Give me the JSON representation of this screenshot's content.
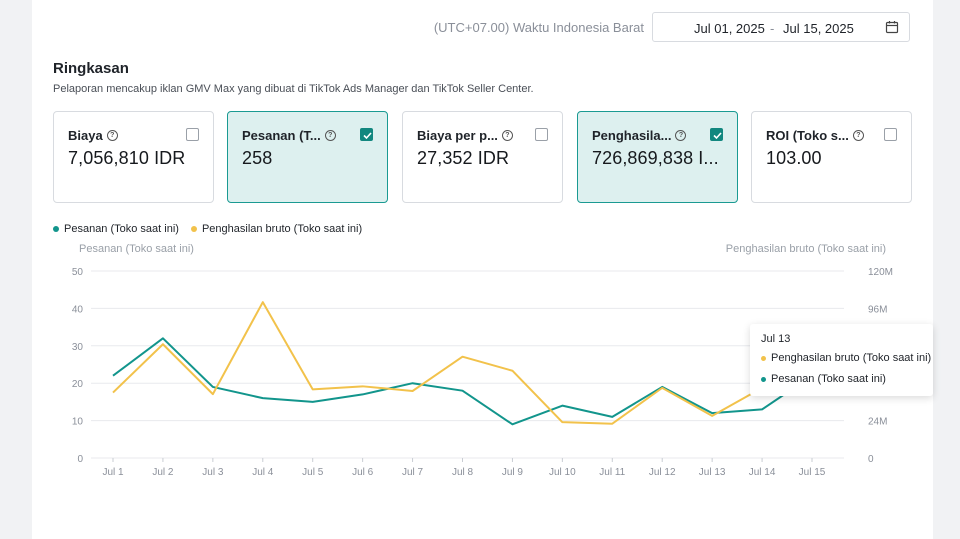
{
  "header": {
    "timezone": "(UTC+07.00) Waktu Indonesia Barat",
    "date_start": "Jul 01, 2025",
    "date_sep": "-",
    "date_end": "Jul 15, 2025",
    "calendar_icon": "calendar-icon"
  },
  "summary": {
    "title": "Ringkasan",
    "subtitle": "Pelaporan mencakup iklan GMV Max yang dibuat di TikTok Ads Manager dan TikTok Seller Center."
  },
  "cards": [
    {
      "label": "Biaya",
      "value": "7,056,810 IDR",
      "checked": false
    },
    {
      "label": "Pesanan (T...",
      "value": "258",
      "checked": true
    },
    {
      "label": "Biaya per p...",
      "value": "27,352 IDR",
      "checked": false
    },
    {
      "label": "Penghasila...",
      "value": "726,869,838 I...",
      "checked": true
    },
    {
      "label": "ROI (Toko s...",
      "value": "103.00",
      "checked": false
    }
  ],
  "help_glyph": "?",
  "legend": [
    {
      "name": "Pesanan (Toko saat ini)",
      "color": "#12958c"
    },
    {
      "name": "Penghasilan bruto (Toko saat ini)",
      "color": "#f2c24b"
    }
  ],
  "tooltip": {
    "title": "Jul 13",
    "rows": [
      {
        "label": "Penghasilan bruto (Toko saat ini)",
        "color": "#f2c24b"
      },
      {
        "label": "Pesanan (Toko saat ini)",
        "color": "#12958c"
      }
    ]
  },
  "chart_data": {
    "type": "line",
    "ylabel_left": "Pesanan (Toko saat ini)",
    "ylabel_right": "Penghasilan bruto (Toko saat ini)",
    "categories": [
      "Jul 1",
      "Jul 2",
      "Jul 3",
      "Jul 4",
      "Jul 5",
      "Jul 6",
      "Jul 7",
      "Jul 8",
      "Jul 9",
      "Jul 10",
      "Jul 11",
      "Jul 12",
      "Jul 13",
      "Jul 14",
      "Jul 15"
    ],
    "y_left_ticks": [
      "0",
      "10",
      "20",
      "30",
      "40",
      "50"
    ],
    "y_left_lim": [
      0,
      50
    ],
    "y_right_ticks": [
      "0",
      "24M",
      "48M",
      "72M",
      "96M",
      "120M"
    ],
    "y_right_lim": [
      0,
      120
    ],
    "y_right_unit": "M",
    "series": [
      {
        "name": "Pesanan (Toko saat ini)",
        "axis": "left",
        "color": "#12958c",
        "values": [
          22,
          32,
          19,
          16,
          15,
          17,
          20,
          18,
          9,
          14,
          11,
          19,
          12,
          13,
          22
        ]
      },
      {
        "name": "Penghasilan bruto (Toko saat ini)",
        "axis": "right",
        "color": "#f2c24b",
        "values": [
          42,
          73,
          41,
          100,
          44,
          46,
          43,
          65,
          56,
          23,
          22,
          45,
          27,
          45,
          48
        ]
      }
    ],
    "grid": true
  }
}
